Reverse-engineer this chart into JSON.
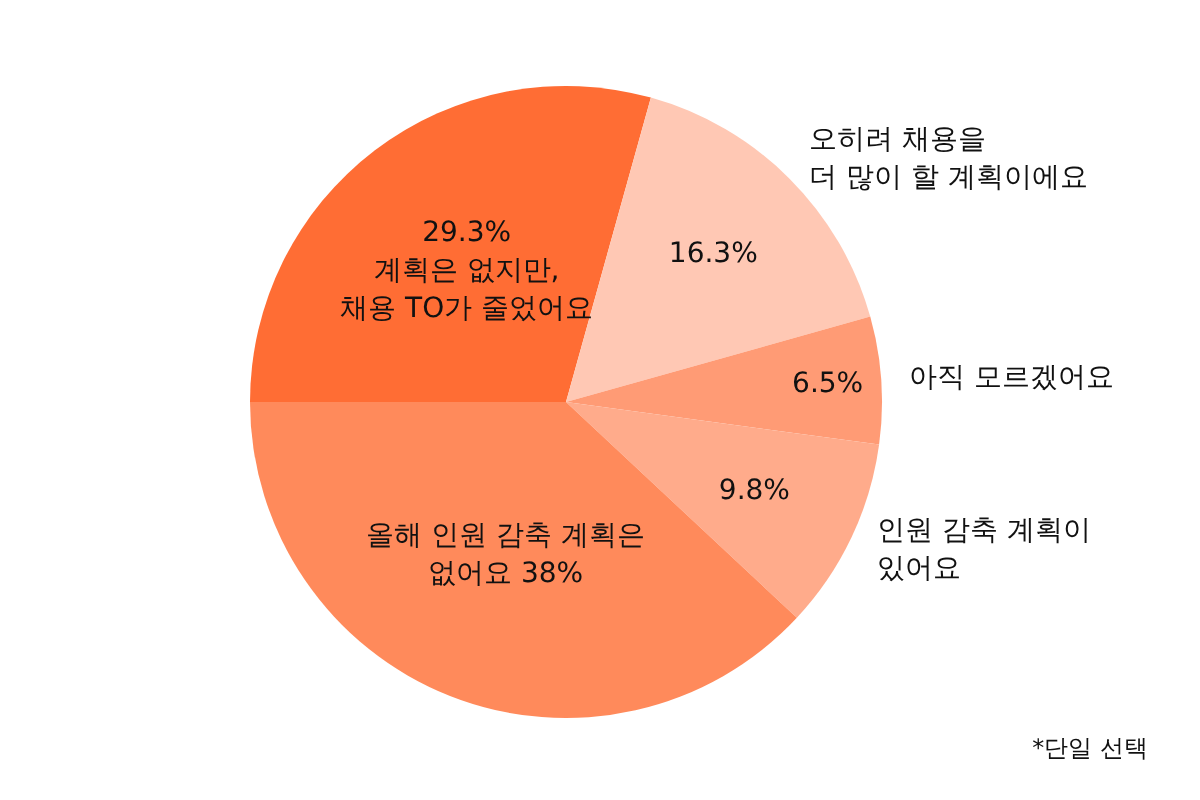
{
  "chart_data": {
    "type": "pie",
    "categories": [
      "계획은 없지만,\n채용 TO가 줄었어요",
      "오히려 채용을\n더 많이 할 계획이에요",
      "아직 모르겠어요",
      "인원 감축 계획이\n있어요",
      "올해 인원 감축 계획은\n없어요 38%"
    ],
    "values": [
      29.3,
      16.3,
      6.5,
      9.8,
      38
    ],
    "value_labels": [
      "29.3%",
      "16.3%",
      "6.5%",
      "9.8%",
      null
    ],
    "colors": [
      "#ff6d34",
      "#ffc8b4",
      "#ff9b75",
      "#ffab8b",
      "#ff8a5b"
    ],
    "annotations": [
      "*단일 선택"
    ]
  }
}
